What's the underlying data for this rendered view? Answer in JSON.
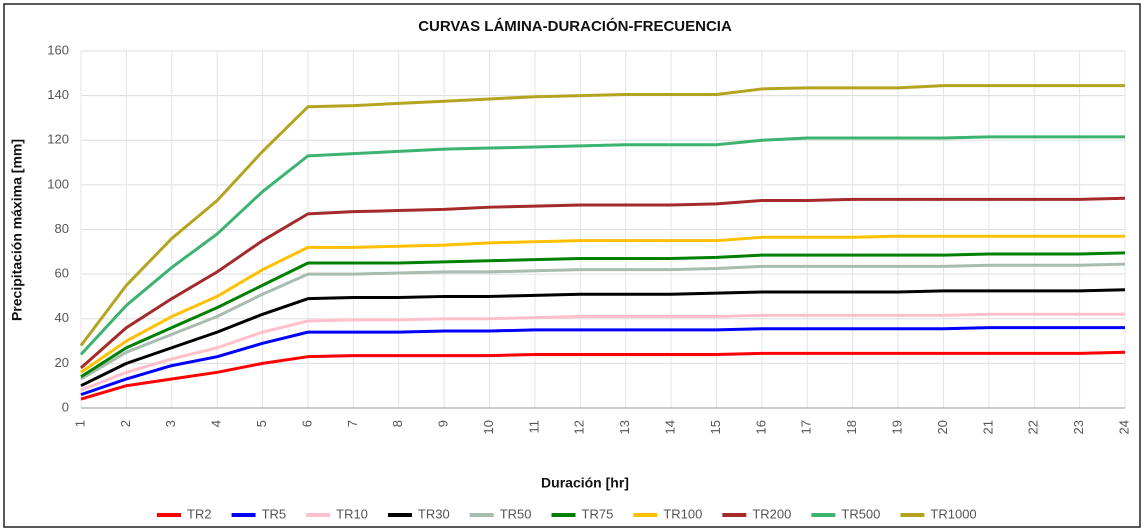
{
  "chart_data": {
    "type": "line",
    "title": "CURVAS LÁMINA-DURACIÓN-FRECUENCIA",
    "x_label": "Duración [hr]",
    "y_label": "Precipitación máxima [mm]",
    "x": [
      1,
      2,
      3,
      4,
      5,
      6,
      7,
      8,
      9,
      10,
      11,
      12,
      13,
      14,
      15,
      16,
      17,
      18,
      19,
      20,
      21,
      22,
      23,
      24
    ],
    "xlim": [
      1,
      24
    ],
    "xticks": [
      1,
      2,
      3,
      4,
      5,
      6,
      7,
      8,
      9,
      10,
      11,
      12,
      13,
      14,
      15,
      16,
      17,
      18,
      19,
      20,
      21,
      22,
      23,
      24
    ],
    "ylim": [
      0,
      160
    ],
    "yticks": [
      0,
      20,
      40,
      60,
      80,
      100,
      120,
      140,
      160
    ],
    "grid": true,
    "legend": "bottom",
    "series": [
      {
        "name": "TR2",
        "color": "#ff0000",
        "values": [
          4,
          10,
          13,
          16,
          20,
          23,
          23.5,
          23.5,
          23.5,
          23.5,
          24,
          24,
          24,
          24,
          24,
          24.5,
          24.5,
          24.5,
          24.5,
          24.5,
          24.5,
          24.5,
          24.5,
          25
        ]
      },
      {
        "name": "TR5",
        "color": "#0000ff",
        "values": [
          6,
          13,
          19,
          23,
          29,
          34,
          34,
          34,
          34.5,
          34.5,
          35,
          35,
          35,
          35,
          35,
          35.5,
          35.5,
          35.5,
          35.5,
          35.5,
          36,
          36,
          36,
          36
        ]
      },
      {
        "name": "TR10",
        "color": "#ffc0cb",
        "values": [
          8,
          16,
          22,
          27,
          34,
          39,
          39.5,
          39.5,
          40,
          40,
          40.5,
          41,
          41,
          41,
          41,
          41.5,
          41.5,
          41.5,
          41.5,
          41.5,
          42,
          42,
          42,
          42
        ]
      },
      {
        "name": "TR30",
        "color": "#000000",
        "values": [
          10,
          20,
          27,
          34,
          42,
          49,
          49.5,
          49.5,
          50,
          50,
          50.5,
          51,
          51,
          51,
          51.5,
          52,
          52,
          52,
          52,
          52.5,
          52.5,
          52.5,
          52.5,
          53
        ]
      },
      {
        "name": "TR50",
        "color": "#a8bcb0",
        "values": [
          13,
          25,
          33,
          41,
          51,
          60,
          60,
          60.5,
          61,
          61,
          61.5,
          62,
          62,
          62,
          62.5,
          63.5,
          63.5,
          63.5,
          63.5,
          63.5,
          64,
          64,
          64,
          64.5
        ]
      },
      {
        "name": "TR75",
        "color": "#008000",
        "values": [
          14,
          27,
          36,
          45,
          55,
          65,
          65,
          65,
          65.5,
          66,
          66.5,
          67,
          67,
          67,
          67.5,
          68.5,
          68.5,
          68.5,
          68.5,
          68.5,
          69,
          69,
          69,
          69.5
        ]
      },
      {
        "name": "TR100",
        "color": "#ffc000",
        "values": [
          16,
          30,
          41,
          50,
          62,
          72,
          72,
          72.5,
          73,
          74,
          74.5,
          75,
          75,
          75,
          75,
          76.5,
          76.5,
          76.5,
          77,
          77,
          77,
          77,
          77,
          77
        ]
      },
      {
        "name": "TR200",
        "color": "#a52a2a",
        "values": [
          18,
          36,
          49,
          61,
          75,
          87,
          88,
          88.5,
          89,
          90,
          90.5,
          91,
          91,
          91,
          91.5,
          93,
          93,
          93.5,
          93.5,
          93.5,
          93.5,
          93.5,
          93.5,
          94
        ]
      },
      {
        "name": "TR500",
        "color": "#3cb371",
        "values": [
          24,
          46,
          63,
          78,
          97,
          113,
          114,
          115,
          116,
          116.5,
          117,
          117.5,
          118,
          118,
          118,
          120,
          121,
          121,
          121,
          121,
          121.5,
          121.5,
          121.5,
          121.5
        ]
      },
      {
        "name": "TR1000",
        "color": "#b5a41f",
        "values": [
          28,
          55,
          76,
          93,
          115,
          135,
          135.5,
          136.5,
          137.5,
          138.5,
          139.5,
          140,
          140.5,
          140.5,
          140.5,
          143,
          143.5,
          143.5,
          143.5,
          144.5,
          144.5,
          144.5,
          144.5,
          144.5
        ]
      }
    ]
  }
}
